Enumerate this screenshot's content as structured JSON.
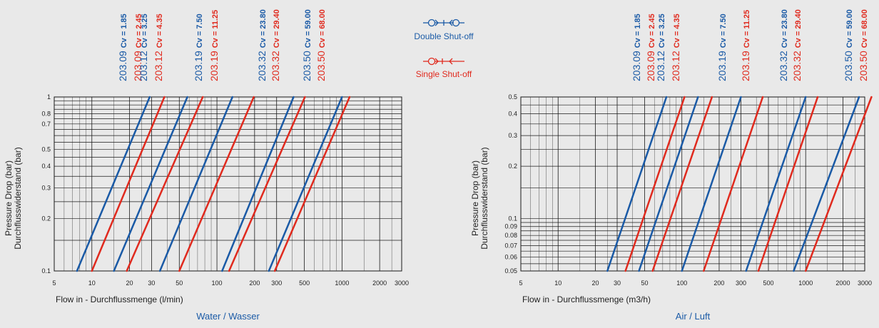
{
  "colors": {
    "double": "#1a5aa6",
    "single": "#e02a1e",
    "grid": "#1a1a1a",
    "background": "#e9e9e9"
  },
  "legend": [
    {
      "icon": "double-shutoff-icon",
      "label": "Double Shut-off",
      "color": "#1a5aa6"
    },
    {
      "icon": "single-shutoff-icon",
      "label": "Single Shut-off",
      "color": "#e02a1e"
    }
  ],
  "chart_data": [
    {
      "type": "line",
      "scale": "log-log",
      "caption": "Water / Wasser",
      "xlabel": "Flow in - Durchflussmenge (l/min)",
      "ylabel": [
        "Pressure Drop (bar)",
        "Durchflusswiderstand (bar)"
      ],
      "xlim": [
        5,
        3000
      ],
      "ylim": [
        0.1,
        1
      ],
      "x_ticks": [
        5,
        10,
        20,
        30,
        50,
        100,
        200,
        300,
        500,
        1000,
        2000,
        3000
      ],
      "y_ticks": [
        0.1,
        0.2,
        0.3,
        0.4,
        0.5,
        0.7,
        0.8,
        1
      ],
      "grid": true,
      "series": [
        {
          "model": "203.09",
          "cv": "Cv = 1.85",
          "type": "double",
          "points": [
            [
              7.6,
              0.1
            ],
            [
              29,
              1
            ]
          ]
        },
        {
          "model": "203.09",
          "cv": "Cv = 2.45",
          "type": "single",
          "points": [
            [
              10,
              0.1
            ],
            [
              38,
              1
            ]
          ]
        },
        {
          "model": "203.12",
          "cv": "Cv = 3.25",
          "type": "double",
          "points": [
            [
              15,
              0.1
            ],
            [
              58,
              1
            ]
          ]
        },
        {
          "model": "203.12",
          "cv": "Cv = 4.35",
          "type": "single",
          "points": [
            [
              19,
              0.1
            ],
            [
              77,
              1
            ]
          ]
        },
        {
          "model": "203.19",
          "cv": "Cv = 7.50",
          "type": "double",
          "points": [
            [
              35,
              0.1
            ],
            [
              133,
              1
            ]
          ]
        },
        {
          "model": "203.19",
          "cv": "Cv = 11.25",
          "type": "single",
          "points": [
            [
              50,
              0.1
            ],
            [
              197,
              1
            ]
          ]
        },
        {
          "model": "203.32",
          "cv": "Cv = 23.80",
          "type": "double",
          "points": [
            [
              110,
              0.1
            ],
            [
              410,
              1
            ]
          ]
        },
        {
          "model": "203.32",
          "cv": "Cv = 29.40",
          "type": "single",
          "points": [
            [
              125,
              0.1
            ],
            [
              505,
              1
            ]
          ]
        },
        {
          "model": "203.50",
          "cv": "Cv = 59.00",
          "type": "double",
          "points": [
            [
              260,
              0.1
            ],
            [
              1000,
              1
            ]
          ]
        },
        {
          "model": "203.50",
          "cv": "Cv = 68.00",
          "type": "single",
          "points": [
            [
              290,
              0.1
            ],
            [
              1150,
              1
            ]
          ]
        }
      ]
    },
    {
      "type": "line",
      "scale": "log-log",
      "caption": "Air / Luft",
      "xlabel": "Flow in - Durchflussmenge (m3/h)",
      "ylabel": [
        "Pressure Drop (bar)",
        "Durchflusswiderstand (bar)"
      ],
      "xlim": [
        5,
        3000
      ],
      "ylim": [
        0.05,
        0.5
      ],
      "x_ticks": [
        5,
        10,
        20,
        30,
        50,
        100,
        200,
        300,
        500,
        1000,
        2000,
        3000
      ],
      "y_ticks": [
        0.05,
        0.06,
        0.07,
        0.08,
        0.09,
        0.1,
        0.2,
        0.3,
        0.4,
        0.5
      ],
      "grid": true,
      "series": [
        {
          "model": "203.09",
          "cv": "Cv = 1.85",
          "type": "double",
          "points": [
            [
              25,
              0.05
            ],
            [
              75,
              0.5
            ]
          ]
        },
        {
          "model": "203.09",
          "cv": "Cv = 2.45",
          "type": "single",
          "points": [
            [
              35,
              0.05
            ],
            [
              105,
              0.5
            ]
          ]
        },
        {
          "model": "203.12",
          "cv": "Cv = 3.25",
          "type": "double",
          "points": [
            [
              45,
              0.05
            ],
            [
              135,
              0.5
            ]
          ]
        },
        {
          "model": "203.12",
          "cv": "Cv = 4.35",
          "type": "single",
          "points": [
            [
              58,
              0.05
            ],
            [
              175,
              0.5
            ]
          ]
        },
        {
          "model": "203.19",
          "cv": "Cv = 7.50",
          "type": "double",
          "points": [
            [
              100,
              0.05
            ],
            [
              300,
              0.5
            ]
          ]
        },
        {
          "model": "203.19",
          "cv": "Cv = 11.25",
          "type": "single",
          "points": [
            [
              150,
              0.05
            ],
            [
              450,
              0.5
            ]
          ]
        },
        {
          "model": "203.32",
          "cv": "Cv = 23.80",
          "type": "double",
          "points": [
            [
              330,
              0.05
            ],
            [
              1000,
              0.5
            ]
          ]
        },
        {
          "model": "203.32",
          "cv": "Cv = 29.40",
          "type": "single",
          "points": [
            [
              415,
              0.05
            ],
            [
              1250,
              0.5
            ]
          ]
        },
        {
          "model": "203.50",
          "cv": "Cv = 59.00",
          "type": "double",
          "points": [
            [
              800,
              0.05
            ],
            [
              2700,
              0.5
            ]
          ]
        },
        {
          "model": "203.50",
          "cv": "Cv = 68.00",
          "type": "single",
          "points": [
            [
              1000,
              0.05
            ],
            [
              3400,
              0.5
            ]
          ]
        }
      ]
    }
  ]
}
